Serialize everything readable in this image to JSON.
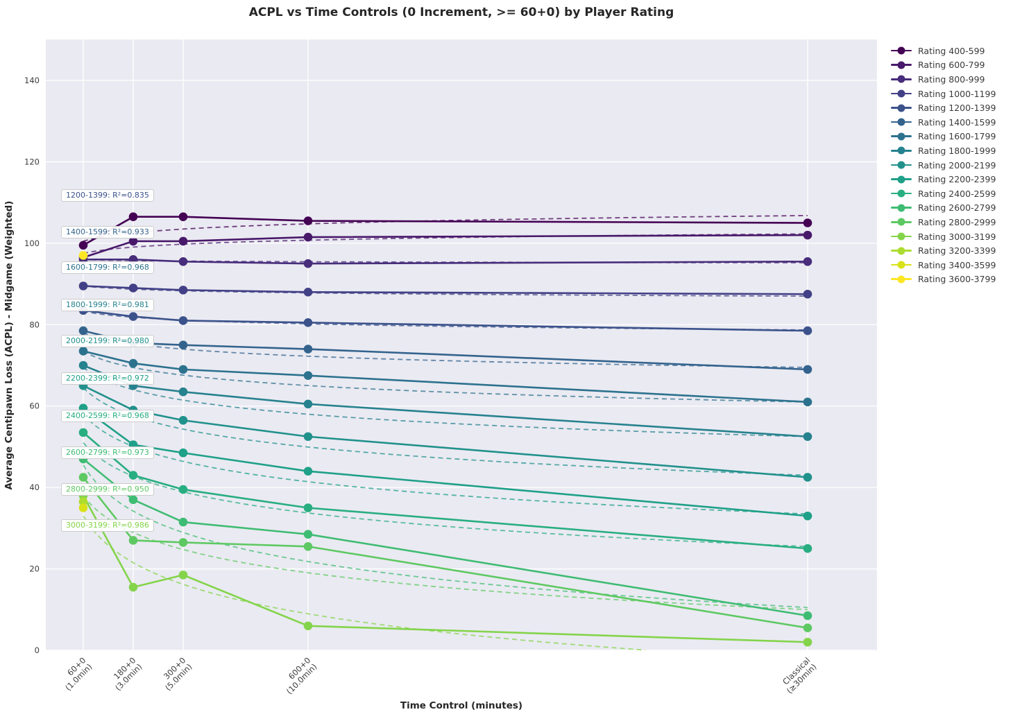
{
  "chart_data": {
    "type": "line",
    "title": "ACPL vs Time Controls (0 Increment, >= 60+0) by Player Rating",
    "xlabel": "Time Control (minutes)",
    "ylabel": "Average Centipawn Loss (ACPL) - Midgame (Weighted)",
    "ylim": [
      0,
      150
    ],
    "yticks": [
      0,
      20,
      40,
      60,
      80,
      100,
      120,
      140
    ],
    "grid": true,
    "legend_position": "right-outside",
    "categories": [
      {
        "label": "60+0",
        "sub": "(1.0min)",
        "minutes": 1
      },
      {
        "label": "180+0",
        "sub": "(3.0min)",
        "minutes": 3
      },
      {
        "label": "300+0",
        "sub": "(5.0min)",
        "minutes": 5
      },
      {
        "label": "600+0",
        "sub": "(10.0min)",
        "minutes": 10
      },
      {
        "label": "Classical",
        "sub": "(≥30min)",
        "minutes": 30
      }
    ],
    "series": [
      {
        "name": "400-599",
        "legend_label": "Rating 400-599",
        "color": "#440154",
        "values": [
          99.5,
          106.5,
          106.5,
          105.5,
          105.0
        ],
        "r2": null,
        "trend": [
          100.5,
          106.8
        ]
      },
      {
        "name": "600-799",
        "legend_label": "Rating 600-799",
        "color": "#48186a",
        "values": [
          96.5,
          100.5,
          100.5,
          101.5,
          102.0
        ],
        "r2": null,
        "trend": [
          97.5,
          102.3
        ]
      },
      {
        "name": "800-999",
        "legend_label": "Rating 800-999",
        "color": "#472d7b",
        "values": [
          96.0,
          96.0,
          95.5,
          95.0,
          95.5
        ],
        "r2": null,
        "trend": [
          96.0,
          95.2
        ]
      },
      {
        "name": "1000-1199",
        "legend_label": "Rating 1000-1199",
        "color": "#424086",
        "values": [
          89.5,
          89.0,
          88.5,
          88.0,
          87.5
        ],
        "r2": null,
        "trend": [
          89.5,
          87.0
        ]
      },
      {
        "name": "1200-1399",
        "legend_label": "Rating 1200-1399",
        "color": "#3b528b",
        "values": [
          83.5,
          82.0,
          81.0,
          80.5,
          78.5
        ],
        "r2": "0.835",
        "trend": [
          83.3,
          78.7
        ]
      },
      {
        "name": "1400-1599",
        "legend_label": "Rating 1400-1599",
        "color": "#33638d",
        "values": [
          78.5,
          75.5,
          75.0,
          74.0,
          69.0
        ],
        "r2": "0.933",
        "trend": [
          78.0,
          69.5
        ]
      },
      {
        "name": "1600-1799",
        "legend_label": "Rating 1600-1799",
        "color": "#2c728e",
        "values": [
          73.5,
          70.5,
          69.0,
          67.5,
          61.0
        ],
        "r2": "0.968",
        "trend": [
          73.5,
          61.0
        ]
      },
      {
        "name": "1800-1999",
        "legend_label": "Rating 1800-1999",
        "color": "#26828e",
        "values": [
          70.0,
          65.0,
          63.5,
          60.5,
          52.5
        ],
        "r2": "0.981",
        "trend": [
          69.5,
          52.5
        ]
      },
      {
        "name": "2000-2199",
        "legend_label": "Rating 2000-2199",
        "color": "#21918c",
        "values": [
          65.0,
          59.0,
          56.5,
          52.5,
          42.5
        ],
        "r2": "0.980",
        "trend": [
          64.5,
          43.0
        ]
      },
      {
        "name": "2200-2399",
        "legend_label": "Rating 2200-2399",
        "color": "#1fa088",
        "values": [
          59.5,
          50.5,
          48.5,
          44.0,
          33.0
        ],
        "r2": "0.972",
        "trend": [
          58.0,
          33.5
        ]
      },
      {
        "name": "2400-2599",
        "legend_label": "Rating 2400-2599",
        "color": "#28ae80",
        "values": [
          53.5,
          43.0,
          39.5,
          35.0,
          25.0
        ],
        "r2": "0.968",
        "trend": [
          51.0,
          25.5
        ]
      },
      {
        "name": "2600-2799",
        "legend_label": "Rating 2600-2799",
        "color": "#3fbc73",
        "values": [
          47.0,
          37.0,
          31.5,
          28.5,
          8.5
        ],
        "r2": "0.973",
        "trend": [
          45.5,
          10.5
        ]
      },
      {
        "name": "2800-2999",
        "legend_label": "Rating 2800-2999",
        "color": "#5ec962",
        "values": [
          42.5,
          27.0,
          26.5,
          25.5,
          5.5
        ],
        "r2": "0.950",
        "trend": [
          38.0,
          10.0
        ]
      },
      {
        "name": "3000-3199",
        "legend_label": "Rating 3000-3199",
        "color": "#84d44b",
        "values": [
          38.0,
          15.5,
          18.5,
          6.0,
          2.0
        ],
        "r2": "0.986",
        "trend": [
          33.0,
          -2.5
        ]
      },
      {
        "name": "3200-3399",
        "legend_label": "Rating 3200-3399",
        "color": "#addc30",
        "values": [
          36.5,
          null,
          null,
          null,
          null
        ],
        "r2": null,
        "trend": null
      },
      {
        "name": "3400-3599",
        "legend_label": "Rating 3400-3599",
        "color": "#d8e219",
        "values": [
          35.0,
          null,
          null,
          null,
          null
        ],
        "r2": null,
        "trend": null
      },
      {
        "name": "3600-3799",
        "legend_label": "Rating 3600-3799",
        "color": "#fde725",
        "values": [
          97.0,
          null,
          null,
          null,
          null
        ],
        "r2": null,
        "trend": null
      }
    ],
    "annotations": [
      {
        "label": "1200-1399: R²=0.835",
        "color": "#3b528b"
      },
      {
        "label": "1400-1599: R²=0.933",
        "color": "#33638d"
      },
      {
        "label": "1600-1799: R²=0.968",
        "color": "#2c728e"
      },
      {
        "label": "1800-1999: R²=0.981",
        "color": "#26828e"
      },
      {
        "label": "2000-2199: R²=0.980",
        "color": "#21918c"
      },
      {
        "label": "2200-2399: R²=0.972",
        "color": "#1fa088"
      },
      {
        "label": "2400-2599: R²=0.968",
        "color": "#28ae80"
      },
      {
        "label": "2600-2799: R²=0.973",
        "color": "#3fbc73"
      },
      {
        "label": "2800-2999: R²=0.950",
        "color": "#5ec962"
      },
      {
        "label": "3000-3199: R²=0.986",
        "color": "#84d44b"
      }
    ]
  }
}
